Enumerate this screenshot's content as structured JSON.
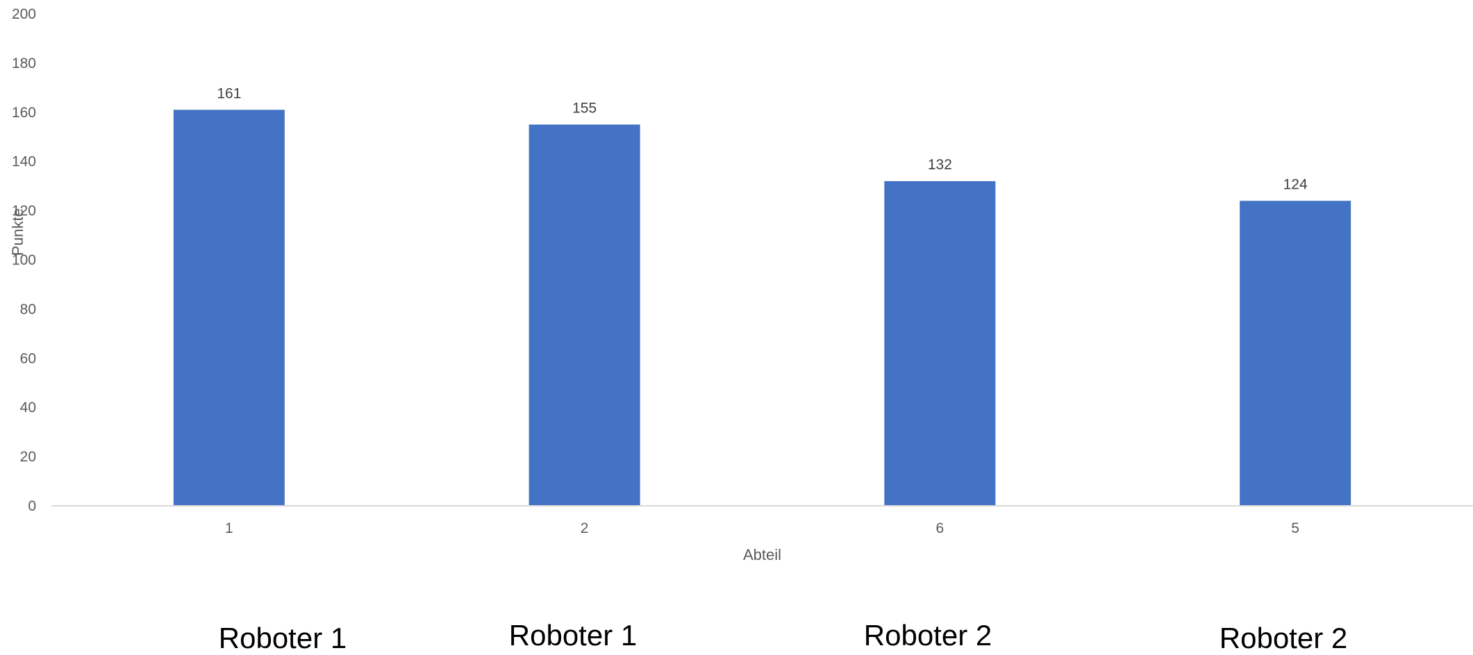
{
  "chart_data": {
    "type": "bar",
    "categories": [
      "1",
      "2",
      "6",
      "5"
    ],
    "values": [
      161,
      155,
      132,
      124
    ],
    "data_labels": [
      "161",
      "155",
      "132",
      "124"
    ],
    "xlabel": "Abteil",
    "ylabel": "Punkte",
    "ylim": [
      0,
      200
    ],
    "yticks": [
      0,
      20,
      40,
      60,
      80,
      100,
      120,
      140,
      160,
      180,
      200
    ],
    "grid": false,
    "legend": "none",
    "bar_color": "#4472C4"
  },
  "annotations": {
    "robot_labels": [
      "Roboter 1",
      "Roboter 1",
      "Roboter 2",
      "Roboter 2"
    ]
  }
}
